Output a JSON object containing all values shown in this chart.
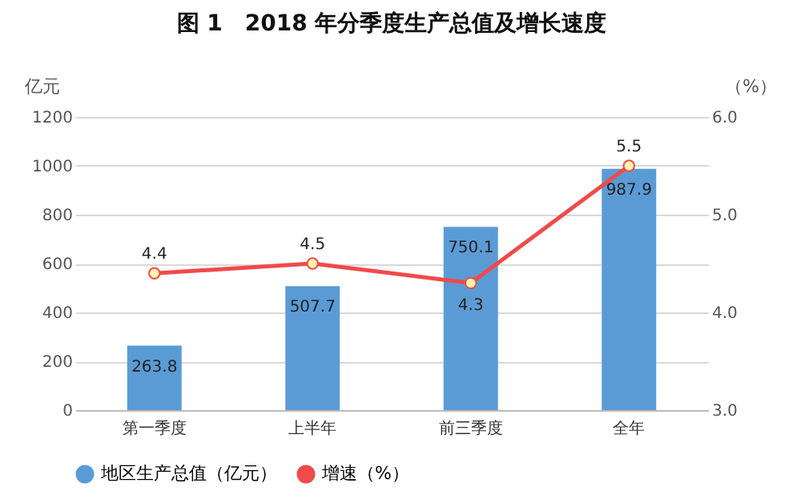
{
  "chart_data": {
    "type": "bar",
    "title": "图 1　2018 年分季度生产总值及增长速度",
    "ylabel": "亿元",
    "y2label": "（%）",
    "categories": [
      "第一季度",
      "上半年",
      "前三季度",
      "全年"
    ],
    "series": [
      {
        "name": "地区生产总值（亿元）",
        "color": "#5b9bd5",
        "values": [
          263.8,
          507.7,
          750.1,
          987.9
        ]
      },
      {
        "name": "增速（%）",
        "type": "line",
        "axis": "y2",
        "color": "#f04a4a",
        "marker": "circle",
        "values": [
          4.4,
          4.5,
          4.3,
          5.5
        ]
      }
    ],
    "ylim": [
      0,
      1200
    ],
    "yticks": [
      0,
      200,
      400,
      600,
      800,
      1000,
      1200
    ],
    "y2lim": [
      3,
      6
    ],
    "y2ticks": [
      {
        "value": 3,
        "label": "3.0"
      },
      {
        "value": 4,
        "label": "4.0"
      },
      {
        "value": 5,
        "label": "5.0"
      },
      {
        "value": 6,
        "label": "6.0"
      }
    ],
    "grid": "y",
    "legend": "bottom",
    "data_labels": true
  }
}
